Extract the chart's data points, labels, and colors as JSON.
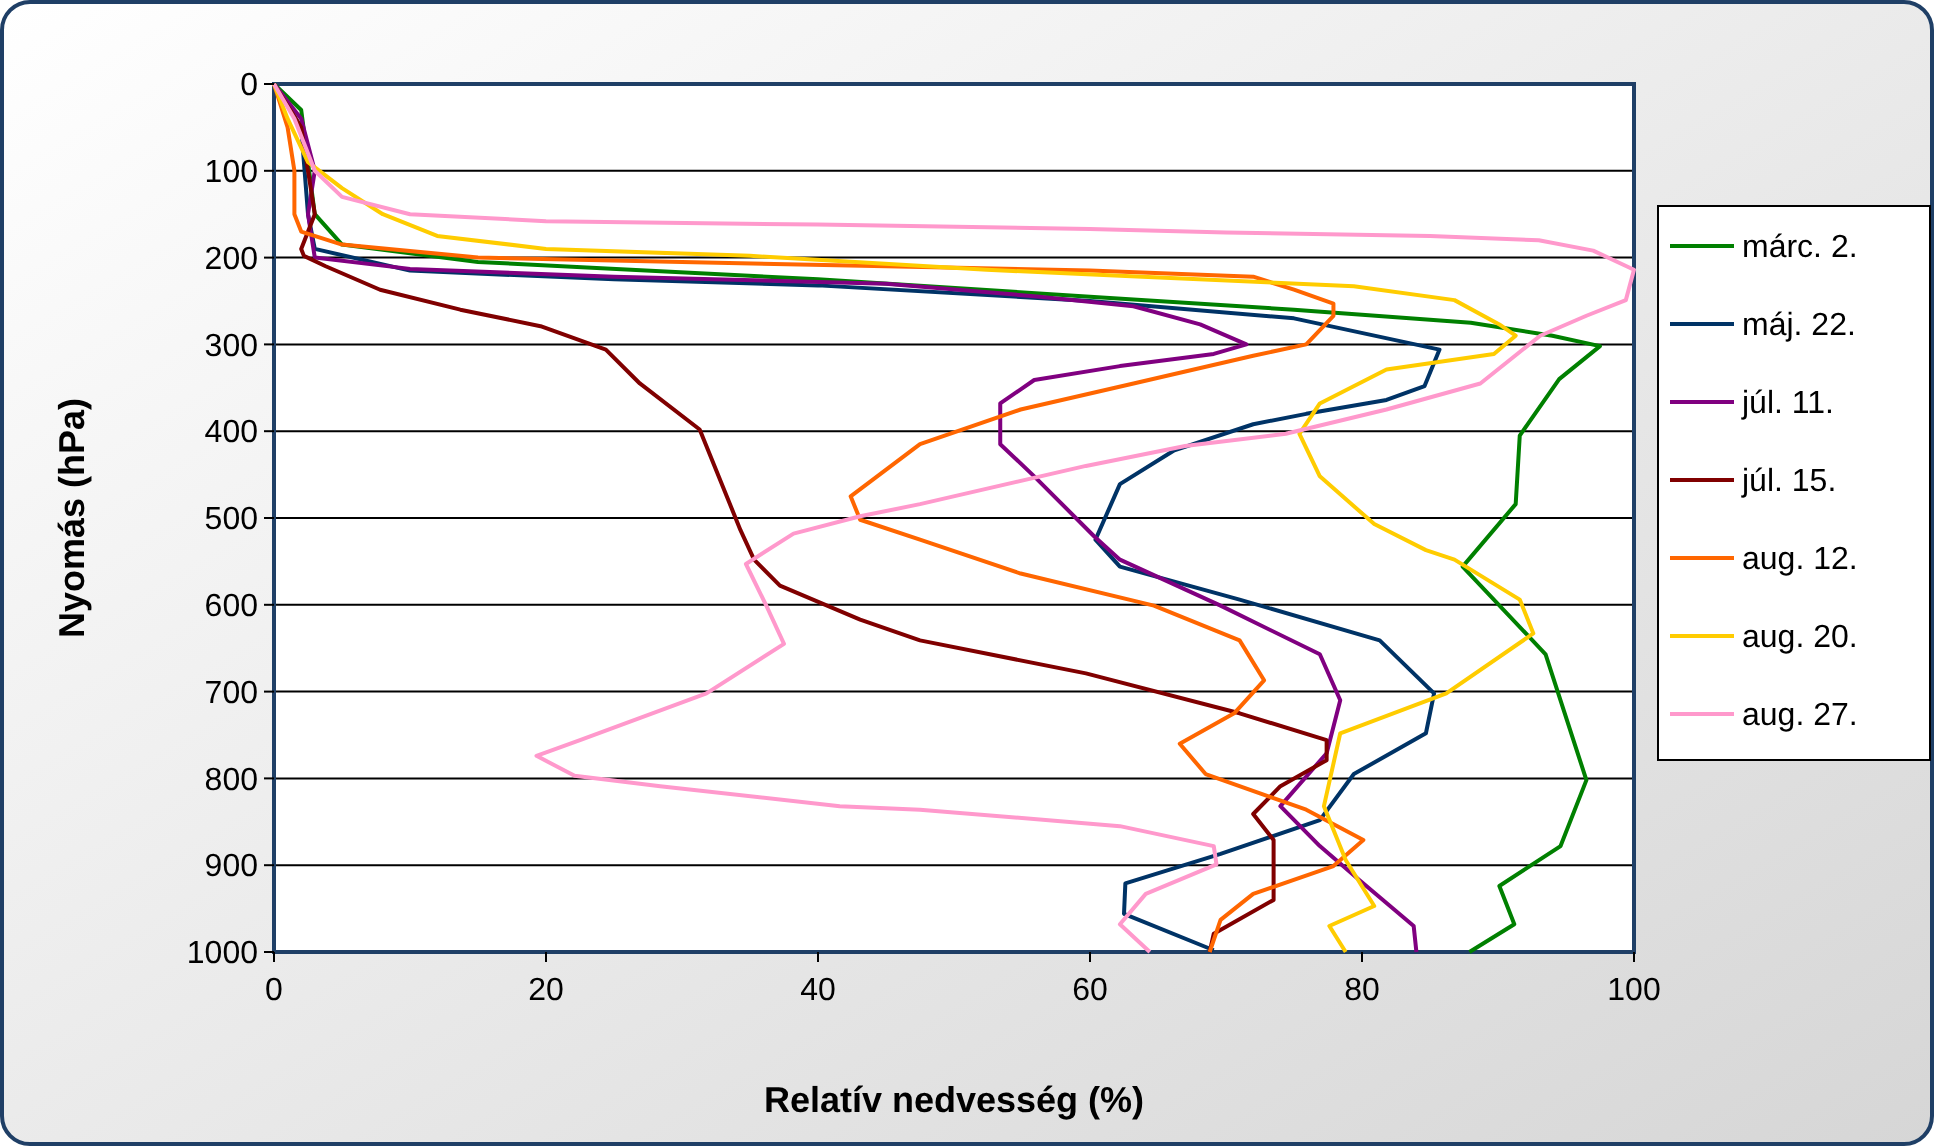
{
  "chart_data": {
    "type": "line",
    "xlabel": "Relatív nedvesség (%)",
    "ylabel": "Nyomás (hPa)",
    "xlim": [
      0,
      100
    ],
    "xticks": [
      0,
      20,
      40,
      60,
      80,
      100
    ],
    "ylim": [
      1000,
      0
    ],
    "yticks": [
      0,
      100,
      200,
      300,
      400,
      500,
      600,
      700,
      800,
      900,
      1000
    ],
    "grid": "y",
    "legend": "right",
    "marker": "none",
    "line_style": "solid",
    "series": [
      {
        "name": "márc. 2.",
        "color": "#008000",
        "x": [
          0,
          2,
          3,
          5,
          15,
          40,
          60,
          75,
          88,
          94,
          97.5,
          94.5,
          91.6,
          91.3,
          87.4,
          93.5,
          96.5,
          94.6,
          90.1,
          91.2,
          87.9
        ],
        "values": [
          0,
          30,
          150,
          185,
          205,
          225,
          245,
          260,
          275,
          290,
          302,
          340,
          405,
          484,
          556,
          657,
          802,
          878,
          924,
          968,
          1000
        ]
      },
      {
        "name": "máj. 22.",
        "color": "#003366",
        "x": [
          0,
          2,
          2.5,
          3,
          10,
          25,
          40,
          60,
          75,
          85.7,
          84.6,
          81.8,
          75.9,
          72,
          66.2,
          62.2,
          60.4,
          62.2,
          71,
          81.3,
          85.3,
          84.7,
          79.4,
          76.9,
          69.6,
          62.6,
          62.5,
          69.1
        ],
        "values": [
          0,
          50,
          150,
          190,
          215,
          225,
          232,
          250,
          270,
          306,
          348,
          364,
          380,
          392,
          422,
          461,
          525,
          556,
          594,
          641,
          702,
          748,
          795,
          848,
          887,
          921,
          956,
          998
        ]
      },
      {
        "name": "júl. 11.",
        "color": "#800080",
        "x": [
          0,
          2,
          3,
          2.5,
          3,
          10,
          25,
          45,
          56.3,
          63.2,
          68.1,
          71.5,
          69.1,
          62.2,
          55.9,
          53.4,
          53.4,
          55.9,
          60.3,
          62.2,
          69.6,
          76.9,
          78.4,
          77.4,
          74,
          76.9,
          79.8,
          83.8,
          84
        ],
        "values": [
          0,
          40,
          100,
          150,
          200,
          213,
          222,
          230,
          245,
          256,
          277,
          300,
          311,
          325,
          341,
          368,
          415,
          452,
          521,
          548,
          601,
          657,
          710,
          771,
          832,
          878,
          917,
          970,
          1000
        ]
      },
      {
        "name": "júl. 15.",
        "color": "#800000",
        "x": [
          0,
          2,
          2.5,
          3,
          2,
          2.2,
          3.8,
          7.8,
          13.7,
          19.6,
          24.4,
          26.9,
          31.3,
          34.3,
          35.3,
          37.2,
          43.1,
          47.5,
          59.7,
          71,
          77.4,
          77.4,
          74,
          72,
          73.5,
          73.5,
          69.1,
          68.8
        ],
        "values": [
          0,
          50,
          100,
          150,
          190,
          198,
          210,
          237,
          260,
          279,
          306,
          345,
          398,
          514,
          548,
          578,
          617,
          641,
          679,
          725,
          756,
          779,
          809,
          841,
          871,
          940,
          979,
          1000
        ]
      },
      {
        "name": "aug. 12.",
        "color": "#ff6600",
        "x": [
          0,
          1,
          1.5,
          1.5,
          2,
          5,
          15,
          30,
          45,
          60,
          72,
          75,
          77.9,
          77.9,
          75.9,
          72,
          63.2,
          54.9,
          47.5,
          42.4,
          43.1,
          47.5,
          54.9,
          64.7,
          71,
          72.8,
          70.6,
          66.6,
          68.5,
          75.9,
          80.1,
          77.9,
          72,
          69.6,
          68.8
        ],
        "values": [
          0,
          50,
          100,
          150,
          170,
          185,
          200,
          205,
          210,
          215,
          222,
          237,
          253,
          267,
          300,
          313,
          345,
          375,
          415,
          475,
          502,
          525,
          564,
          601,
          641,
          687,
          725,
          760,
          795,
          836,
          871,
          901,
          933,
          963,
          1000
        ]
      },
      {
        "name": "aug. 20.",
        "color": "#ffcc00",
        "x": [
          0,
          1,
          2.5,
          5,
          8,
          12,
          20,
          35,
          52.4,
          62.2,
          79.4,
          86.8,
          90.1,
          91.3,
          89.7,
          81.8,
          76.9,
          75.4,
          76.9,
          80.9,
          84.7,
          86.8,
          91.6,
          92.6,
          86.2,
          78.4,
          77.2,
          78.8,
          80.9,
          77.6,
          78.8
        ],
        "values": [
          0,
          40,
          90,
          120,
          150,
          175,
          190,
          198,
          214,
          221,
          233,
          249,
          277,
          290,
          311,
          329,
          368,
          403,
          452,
          507,
          537,
          548,
          594,
          633,
          702,
          748,
          832,
          894,
          947,
          970,
          1000
        ]
      },
      {
        "name": "aug. 27.",
        "color": "#ff99cc",
        "x": [
          0,
          1.5,
          3,
          5,
          10,
          20,
          40,
          60,
          70,
          85,
          93,
          97,
          100,
          99.4,
          96.5,
          93.1,
          88.7,
          81.8,
          74.4,
          67,
          59.7,
          47.5,
          43.1,
          38.2,
          34.7,
          36.2,
          37.5,
          31.8,
          22.5,
          19.3,
          22.1,
          28.4,
          41.6,
          47.5,
          62.2,
          69.1,
          69.3,
          64.1,
          62.2,
          64.4
        ],
        "values": [
          0,
          40,
          100,
          130,
          150,
          158,
          162,
          167,
          171,
          175,
          180,
          192,
          214,
          249,
          267,
          290,
          345,
          375,
          403,
          417,
          440,
          484,
          498,
          518,
          553,
          601,
          645,
          702,
          756,
          774,
          797,
          809,
          832,
          836,
          855,
          878,
          899,
          933,
          968,
          1000
        ]
      }
    ]
  }
}
